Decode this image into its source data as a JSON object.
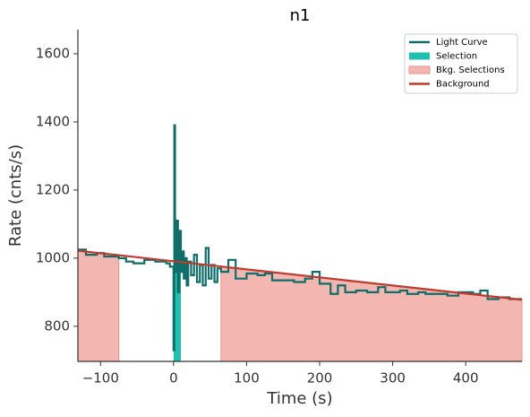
{
  "chart_data": {
    "type": "line",
    "title": "n1",
    "xlabel": "Time (s)",
    "ylabel": "Rate (cnts/s)",
    "xlim": [
      -131,
      477
    ],
    "ylim": [
      697,
      1671
    ],
    "xticks": [
      {
        "value": -100,
        "label": "−100"
      },
      0,
      100,
      200,
      300,
      400
    ],
    "yticks": [
      800,
      1000,
      1200,
      1400,
      1600
    ],
    "legend": "upper right",
    "series": [
      {
        "name": "Light Curve",
        "color": "#0e6e6a",
        "step": true,
        "x": [
          -131,
          -120,
          -105,
          -95,
          -75,
          -65,
          -55,
          -40,
          -25,
          -10,
          -5,
          0,
          1,
          2,
          4,
          6,
          8,
          10,
          12,
          14,
          16,
          18,
          20,
          24,
          28,
          32,
          36,
          40,
          44,
          48,
          52,
          56,
          60,
          65,
          75,
          85,
          100,
          115,
          125,
          135,
          150,
          165,
          180,
          190,
          200,
          215,
          225,
          235,
          250,
          265,
          280,
          290,
          310,
          320,
          335,
          345,
          360,
          375,
          390,
          410,
          420,
          430,
          445,
          460
        ],
        "values": [
          1025,
          1010,
          1015,
          1005,
          1000,
          990,
          985,
          995,
          990,
          985,
          975,
          730,
          1390,
          960,
          1110,
          900,
          1080,
          960,
          1020,
          940,
          1000,
          920,
          990,
          950,
          1010,
          930,
          980,
          920,
          1030,
          940,
          980,
          930,
          970,
          960,
          995,
          940,
          955,
          950,
          955,
          935,
          935,
          930,
          940,
          960,
          925,
          895,
          920,
          900,
          905,
          900,
          915,
          900,
          905,
          895,
          900,
          895,
          895,
          890,
          900,
          895,
          905,
          880,
          885,
          880
        ]
      },
      {
        "name": "Background",
        "color": "#c0392b",
        "x": [
          -131,
          477
        ],
        "values": [
          1022,
          878
        ]
      }
    ],
    "selection": {
      "name": "Selection",
      "color": "#20c0b0",
      "range": [
        0,
        10
      ]
    },
    "bkg_selections": {
      "name": "Bkg. Selections",
      "color": "#f4b6b0",
      "ranges": [
        [
          -131,
          -75
        ],
        [
          65,
          477
        ]
      ]
    }
  }
}
